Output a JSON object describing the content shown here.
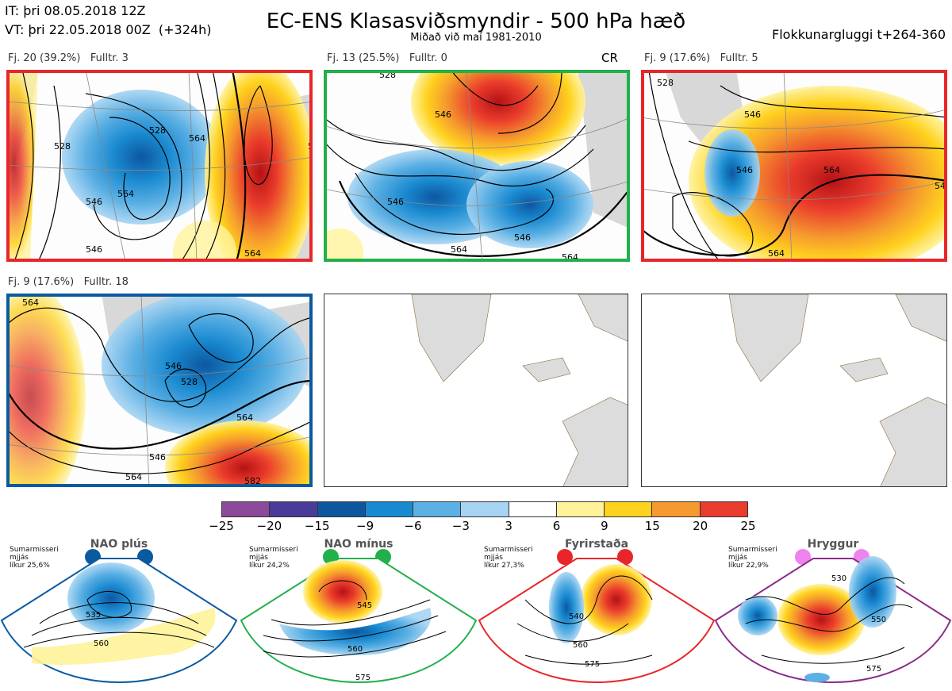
{
  "header": {
    "init_time": "IT: þri 08.05.2018 12Z",
    "valid_time": "VT: þri 22.05.2018 00Z  (+324h)",
    "title": "EC-ENS Klasasviðsmyndir - 500 hPa hæð",
    "subtitle": "Miðað við maí 1981-2010",
    "window": "Flokkunargluggi t+264-360"
  },
  "panels": [
    {
      "label": "Fj. 20 (39.2%)   Fulltr. 3",
      "border_color": "#e8262a",
      "contours": [
        "528",
        "546",
        "564",
        "528",
        "546",
        "564",
        "546",
        "564"
      ]
    },
    {
      "label": "Fj. 13 (25.5%)   Fulltr. 0",
      "marker": "CR",
      "border_color": "#22b04b",
      "contours": [
        "528",
        "546",
        "546",
        "546",
        "564",
        "564"
      ]
    },
    {
      "label": "Fj. 9 (17.6%)   Fulltr. 5",
      "border_color": "#e8262a",
      "contours": [
        "528",
        "546",
        "564",
        "546",
        "564",
        "546"
      ]
    },
    {
      "label": "Fj. 9 (17.6%)   Fulltr. 18",
      "border_color": "#0a5aa0",
      "contours": [
        "564",
        "546",
        "528",
        "564",
        "546",
        "564",
        "582"
      ]
    }
  ],
  "colorbar": {
    "ticks": [
      "−25",
      "−20",
      "−15",
      "−9",
      "−6",
      "−3",
      "3",
      "6",
      "9",
      "15",
      "20",
      "25"
    ],
    "colors": [
      "#8b4a9a",
      "#4a3a9a",
      "#0d57a0",
      "#1a8ad0",
      "#5cb0e4",
      "#a6d4f2",
      "#ffffff",
      "#fff29a",
      "#ffd21e",
      "#f59a2e",
      "#ea3c2c",
      "#b51216"
    ]
  },
  "regimes": [
    {
      "title": "NAO plús",
      "note": "Sumarmisseri\nmjjás\nlíkur 25,6%",
      "color": "#0a5aa0",
      "dot_color": "#0a5aa0",
      "contours": [
        "535",
        "560"
      ]
    },
    {
      "title": "NAO mínus",
      "note": "Sumarmisseri\nmjjás\nlíkur 24,2%",
      "color": "#22b04b",
      "dot_color": "#22b04b",
      "contours": [
        "545",
        "560",
        "575"
      ]
    },
    {
      "title": "Fyrirstaða",
      "note": "Sumarmisseri\nmjjás\nlíkur 27,3%",
      "color": "#e8262a",
      "dot_color": "#e8262a",
      "contours": [
        "540",
        "560",
        "575"
      ]
    },
    {
      "title": "Hryggur",
      "note": "Sumarmisseri\nmjjás\nlíkur 22,9%",
      "color": "#8b2a8a",
      "dot_color": "#ee82ee",
      "contours": [
        "530",
        "550",
        "575"
      ]
    }
  ]
}
